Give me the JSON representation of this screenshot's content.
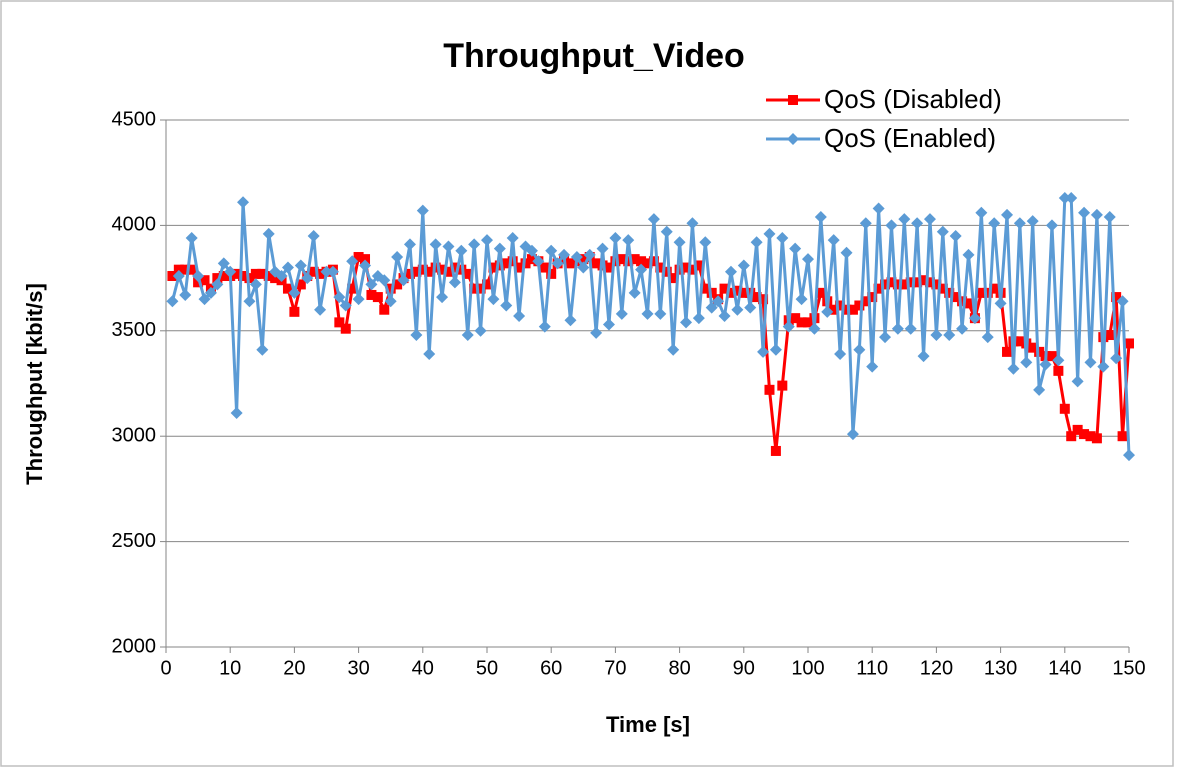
{
  "chart_data": {
    "type": "line",
    "title": "Throughput_Video",
    "x_label": "Time [s]",
    "y_label": "Throughput [kbit/s]",
    "x": [
      1,
      2,
      3,
      4,
      5,
      6,
      7,
      8,
      9,
      10,
      11,
      12,
      13,
      14,
      15,
      16,
      17,
      18,
      19,
      20,
      21,
      22,
      23,
      24,
      25,
      26,
      27,
      28,
      29,
      30,
      31,
      32,
      33,
      34,
      35,
      36,
      37,
      38,
      39,
      40,
      41,
      42,
      43,
      44,
      45,
      46,
      47,
      48,
      49,
      50,
      51,
      52,
      53,
      54,
      55,
      56,
      57,
      58,
      59,
      60,
      61,
      62,
      63,
      64,
      65,
      66,
      67,
      68,
      69,
      70,
      71,
      72,
      73,
      74,
      75,
      76,
      77,
      78,
      79,
      80,
      81,
      82,
      83,
      84,
      85,
      86,
      87,
      88,
      89,
      90,
      91,
      92,
      93,
      94,
      95,
      96,
      97,
      98,
      99,
      100,
      101,
      102,
      103,
      104,
      105,
      106,
      107,
      108,
      109,
      110,
      111,
      112,
      113,
      114,
      115,
      116,
      117,
      118,
      119,
      120,
      121,
      122,
      123,
      124,
      125,
      126,
      127,
      128,
      129,
      130,
      131,
      132,
      133,
      134,
      135,
      136,
      137,
      138,
      139,
      140,
      141,
      142,
      143,
      144,
      145,
      146,
      147,
      148,
      149,
      150
    ],
    "series": [
      {
        "name": "QoS (Disabled)",
        "color": "#ff0000",
        "marker": "square",
        "values": [
          3760,
          3790,
          3790,
          3790,
          3730,
          3740,
          3700,
          3750,
          3760,
          3760,
          3770,
          3760,
          3750,
          3770,
          3770,
          3760,
          3750,
          3740,
          3700,
          3590,
          3720,
          3760,
          3780,
          3770,
          3780,
          3790,
          3540,
          3510,
          3700,
          3850,
          3840,
          3670,
          3660,
          3600,
          3700,
          3720,
          3750,
          3770,
          3780,
          3790,
          3780,
          3800,
          3790,
          3780,
          3800,
          3790,
          3770,
          3700,
          3700,
          3720,
          3800,
          3810,
          3820,
          3830,
          3800,
          3820,
          3840,
          3830,
          3800,
          3770,
          3820,
          3840,
          3820,
          3830,
          3840,
          3850,
          3820,
          3810,
          3800,
          3830,
          3840,
          3830,
          3840,
          3830,
          3820,
          3830,
          3800,
          3780,
          3750,
          3790,
          3800,
          3790,
          3810,
          3700,
          3680,
          3650,
          3700,
          3680,
          3690,
          3680,
          3680,
          3660,
          3650,
          3220,
          2930,
          3240,
          3550,
          3560,
          3540,
          3540,
          3560,
          3680,
          3640,
          3600,
          3620,
          3600,
          3600,
          3620,
          3640,
          3660,
          3700,
          3720,
          3730,
          3720,
          3720,
          3730,
          3730,
          3740,
          3730,
          3720,
          3700,
          3680,
          3660,
          3640,
          3630,
          3560,
          3680,
          3680,
          3700,
          3680,
          3400,
          3450,
          3450,
          3440,
          3420,
          3400,
          3380,
          3380,
          3310,
          3130,
          3000,
          3030,
          3010,
          3000,
          2990,
          3470,
          3480,
          3660,
          3000,
          3440
        ]
      },
      {
        "name": "QoS (Enabled)",
        "color": "#5b9bd5",
        "marker": "diamond",
        "values": [
          3640,
          3760,
          3670,
          3940,
          3760,
          3650,
          3680,
          3720,
          3820,
          3780,
          3110,
          4110,
          3640,
          3720,
          3410,
          3960,
          3780,
          3760,
          3800,
          3680,
          3810,
          3750,
          3950,
          3600,
          3780,
          3780,
          3660,
          3620,
          3830,
          3650,
          3810,
          3720,
          3760,
          3740,
          3640,
          3850,
          3740,
          3910,
          3480,
          4070,
          3390,
          3910,
          3660,
          3900,
          3730,
          3880,
          3480,
          3910,
          3500,
          3930,
          3650,
          3890,
          3620,
          3940,
          3570,
          3900,
          3880,
          3830,
          3520,
          3880,
          3820,
          3860,
          3550,
          3850,
          3800,
          3860,
          3490,
          3890,
          3530,
          3940,
          3580,
          3930,
          3680,
          3790,
          3580,
          4030,
          3580,
          3970,
          3410,
          3920,
          3540,
          4010,
          3560,
          3920,
          3610,
          3640,
          3570,
          3780,
          3600,
          3810,
          3610,
          3920,
          3400,
          3960,
          3410,
          3940,
          3520,
          3890,
          3650,
          3840,
          3510,
          4040,
          3590,
          3930,
          3390,
          3870,
          3010,
          3410,
          4010,
          3330,
          4080,
          3470,
          4000,
          3510,
          4030,
          3510,
          4010,
          3380,
          4030,
          3480,
          3970,
          3480,
          3950,
          3510,
          3860,
          3560,
          4060,
          3470,
          4010,
          3630,
          4050,
          3320,
          4010,
          3350,
          4020,
          3220,
          3340,
          4000,
          3360,
          4130,
          4130,
          3260,
          4060,
          3350,
          4050,
          3330,
          4040,
          3370,
          3640,
          2910
        ]
      }
    ],
    "xlim": [
      0,
      150
    ],
    "xticks": [
      0,
      10,
      20,
      30,
      40,
      50,
      60,
      70,
      80,
      90,
      100,
      110,
      120,
      130,
      140,
      150
    ],
    "ylim": [
      2000,
      4500
    ],
    "yticks": [
      2000,
      2500,
      3000,
      3500,
      4000,
      4500
    ],
    "grid": true,
    "legend": "top-right"
  }
}
